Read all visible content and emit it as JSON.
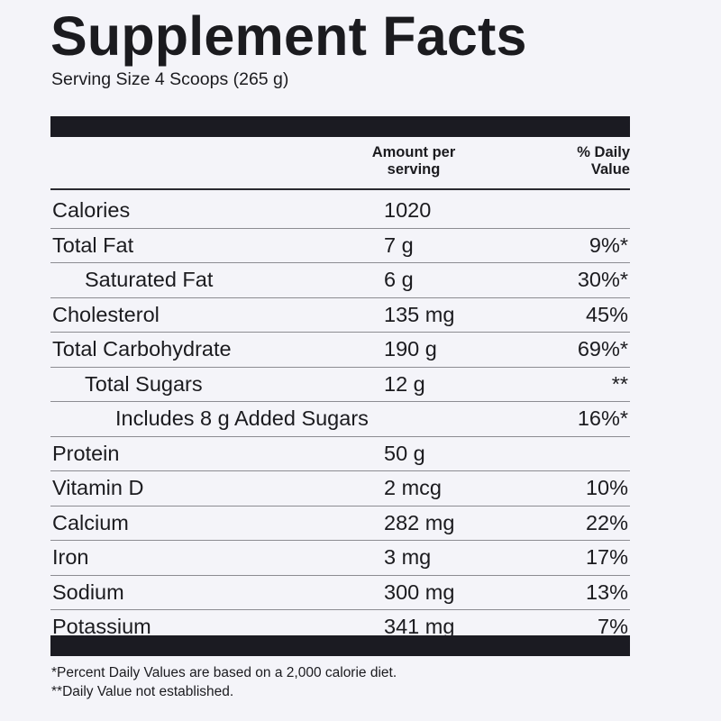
{
  "title": "Supplement Facts",
  "serving_size": "Serving Size 4 Scoops (265 g)",
  "columns": {
    "amount_header_line1": "Amount per",
    "amount_header_line2": "serving",
    "dv_header_line1": "% Daily",
    "dv_header_line2": "Value"
  },
  "rows": [
    {
      "name": "Calories",
      "amount": "1020",
      "dv": "",
      "indent": 0
    },
    {
      "name": "Total Fat",
      "amount": "7 g",
      "dv": "9%*",
      "indent": 0
    },
    {
      "name": "Saturated Fat",
      "amount": "6 g",
      "dv": "30%*",
      "indent": 1
    },
    {
      "name": "Cholesterol",
      "amount": "135 mg",
      "dv": "45%",
      "indent": 0
    },
    {
      "name": "Total Carbohydrate",
      "amount": "190 g",
      "dv": "69%*",
      "indent": 0
    },
    {
      "name": "Total Sugars",
      "amount": "12 g",
      "dv": "**",
      "indent": 1
    },
    {
      "name": "Includes 8 g Added Sugars",
      "amount": "",
      "dv": "16%*",
      "indent": 2
    },
    {
      "name": "Protein",
      "amount": "50 g",
      "dv": "",
      "indent": 0
    },
    {
      "name": "Vitamin D",
      "amount": "2 mcg",
      "dv": "10%",
      "indent": 0
    },
    {
      "name": "Calcium",
      "amount": "282 mg",
      "dv": "22%",
      "indent": 0
    },
    {
      "name": "Iron",
      "amount": "3 mg",
      "dv": "17%",
      "indent": 0
    },
    {
      "name": "Sodium",
      "amount": "300 mg",
      "dv": "13%",
      "indent": 0
    },
    {
      "name": "Potassium",
      "amount": "341 mg",
      "dv": "7%",
      "indent": 0
    }
  ],
  "footnotes": {
    "line1": "*Percent Daily Values are based on a 2,000 calorie diet.",
    "line2": "**Daily Value not established."
  }
}
